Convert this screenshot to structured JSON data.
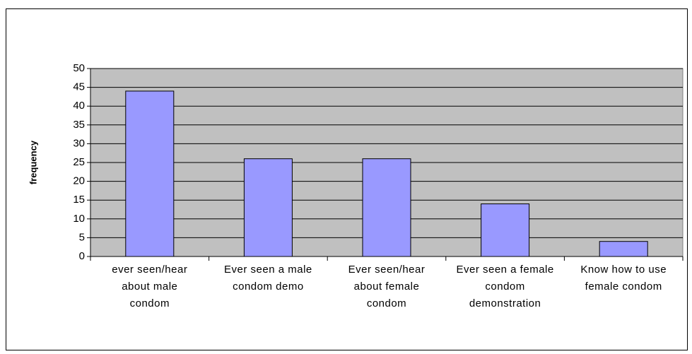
{
  "chart_data": {
    "type": "bar",
    "y_label": "frequency",
    "categories": [
      "ever seen/hear about male condom",
      "Ever seen a male condom demo",
      "Ever seen/hear about female condom",
      "Ever seen a female condom demonstration",
      "Know how to use female condom"
    ],
    "values": [
      44,
      26,
      26,
      14,
      4
    ],
    "color": "#9999ff",
    "ylim": [
      0,
      50
    ],
    "yticks": [
      0,
      5,
      10,
      15,
      20,
      25,
      30,
      35,
      40,
      45,
      50
    ],
    "grid": true
  }
}
